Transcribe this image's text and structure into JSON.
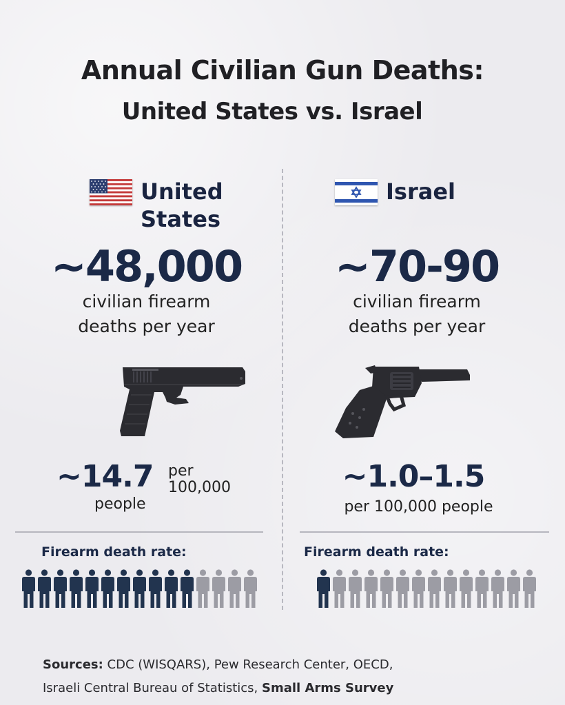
{
  "title_line1": "Annual Civilian Gun Deaths:",
  "title_line2": "United States vs. Israel",
  "us": {
    "name_line1": "United",
    "name_line2": "States",
    "deaths": "~48,000",
    "deaths_label_line1": "civilian firearm",
    "deaths_label_line2": "deaths per year",
    "rate": "~14.7",
    "rate_per_line1": "per",
    "rate_per_line2": "100,000",
    "rate_people": "people",
    "rate_label": "Firearm death rate:",
    "people_filled": 11,
    "people_total": 15,
    "icon": "pistol-icon"
  },
  "il": {
    "name": "Israel",
    "deaths": "~70-90",
    "deaths_label_line1": "civilian firearm",
    "deaths_label_line2": "deaths per year",
    "rate": "~1.0–1.5",
    "rate_per": "per 100,000 people",
    "rate_label": "Firearm death rate:",
    "people_filled": 1,
    "people_total": 14,
    "icon": "revolver-icon"
  },
  "colors": {
    "navy": "#1b2947",
    "person_filled": "#22344f",
    "person_empty": "#9c9ca4"
  },
  "sources": {
    "label": "Sources:",
    "text1": " CDC (WISQARS), Pew Research Center, OECD,",
    "text2": "Israeli Central Bureau of Statistics, ",
    "text2_bold": "Small Arms Survey"
  }
}
